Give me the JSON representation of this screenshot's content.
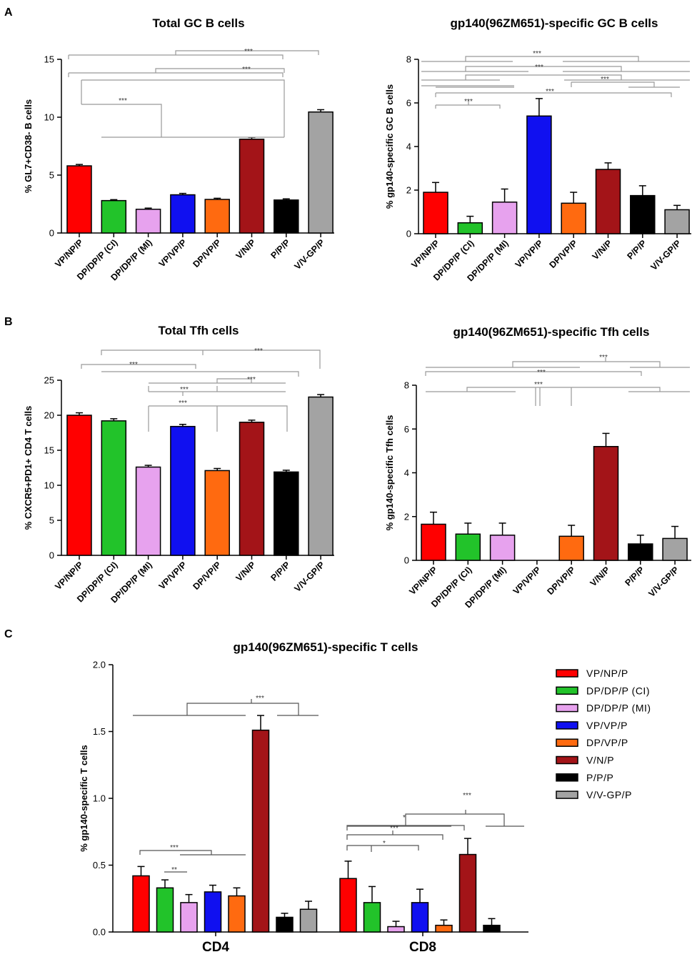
{
  "panels": {
    "A": "A",
    "B": "B",
    "C": "C"
  },
  "colors": {
    "VP/NP/P": "#ff0000",
    "DP/DP/P (CI)": "#22c32a",
    "DP/DP/P (MI)": "#e7a2ee",
    "VP/VP/P": "#1010f0",
    "DP/VP/P": "#ff6a10",
    "V/N/P": "#a31418",
    "P/P/P": "#000000",
    "V/V-GP/P": "#a3a3a3"
  },
  "legend": [
    "VP/NP/P",
    "DP/DP/P (CI)",
    "DP/DP/P (MI)",
    "VP/VP/P",
    "DP/VP/P",
    "V/N/P",
    "P/P/P",
    "V/V-GP/P"
  ],
  "chart_data": [
    {
      "id": "a1",
      "type": "bar",
      "title": "Total GC B cells",
      "ylabel": "% GL7+CD38- B cells",
      "ylim": [
        0,
        15
      ],
      "yticks": [
        0,
        5,
        10,
        15
      ],
      "categories": [
        "VP/NP/P",
        "DP/DP/P (CI)",
        "DP/DP/P (MI)",
        "VP/VP/P",
        "DP/VP/P",
        "V/N/P",
        "P/P/P",
        "V/V-GP/P"
      ],
      "values": [
        5.8,
        2.8,
        2.05,
        3.3,
        2.9,
        8.1,
        2.85,
        10.45
      ],
      "errors": [
        0.12,
        0.08,
        0.1,
        0.12,
        0.1,
        0.15,
        0.1,
        0.2
      ],
      "annotations": [
        "***",
        "***",
        "***"
      ]
    },
    {
      "id": "a2",
      "type": "bar",
      "title": "gp140(96ZM651)-specific GC B cells",
      "ylabel": "% gp140-specific GC B cells",
      "ylim": [
        0,
        8
      ],
      "yticks": [
        0,
        2,
        4,
        6,
        8
      ],
      "categories": [
        "VP/NP/P",
        "DP/DP/P (CI)",
        "DP/DP/P (MI)",
        "VP/VP/P",
        "DP/VP/P",
        "V/N/P",
        "P/P/P",
        "V/V-GP/P"
      ],
      "values": [
        1.9,
        0.5,
        1.45,
        5.4,
        1.4,
        2.95,
        1.75,
        1.1
      ],
      "errors": [
        0.45,
        0.3,
        0.6,
        0.8,
        0.5,
        0.3,
        0.45,
        0.2
      ],
      "annotations": [
        "***",
        "***",
        "***",
        "***",
        "***",
        "***"
      ]
    },
    {
      "id": "b1",
      "type": "bar",
      "title": "Total Tfh cells",
      "ylabel": "% CXCR5+PD1+ CD4 T cells",
      "ylim": [
        0,
        25
      ],
      "yticks": [
        0,
        5,
        10,
        15,
        20,
        25
      ],
      "categories": [
        "VP/NP/P",
        "DP/DP/P (CI)",
        "DP/DP/P (MI)",
        "VP/VP/P",
        "DP/VP/P",
        "V/N/P",
        "P/P/P",
        "V/V-GP/P"
      ],
      "values": [
        20.0,
        19.2,
        12.6,
        18.4,
        12.1,
        19.0,
        11.9,
        22.6
      ],
      "errors": [
        0.35,
        0.3,
        0.25,
        0.3,
        0.3,
        0.3,
        0.25,
        0.35
      ],
      "annotations": [
        "***",
        "***",
        "***",
        "***",
        "***"
      ]
    },
    {
      "id": "b2",
      "type": "bar",
      "title": "gp140(96ZM651)-specific Tfh cells",
      "ylabel": "% gp140-specific Tfh cells",
      "ylim": [
        0,
        8
      ],
      "yticks": [
        0,
        2,
        4,
        6,
        8
      ],
      "categories": [
        "VP/NP/P",
        "DP/DP/P (CI)",
        "DP/DP/P (MI)",
        "VP/VP/P",
        "DP/VP/P",
        "V/N/P",
        "P/P/P",
        "V/V-GP/P"
      ],
      "values": [
        1.65,
        1.2,
        1.15,
        0,
        1.1,
        5.2,
        0.75,
        1.0
      ],
      "errors": [
        0.55,
        0.5,
        0.55,
        0,
        0.5,
        0.6,
        0.4,
        0.55
      ],
      "annotations": [
        "***",
        "***",
        "***"
      ]
    },
    {
      "id": "c",
      "type": "bar",
      "title": "gp140(96ZM651)-specific T cells",
      "ylabel": "% gp140-specific T cells",
      "ylim": [
        0,
        2.0
      ],
      "yticks": [
        0.0,
        0.5,
        1.0,
        1.5,
        2.0
      ],
      "ytick_labels": [
        "0.0",
        "0.5",
        "1.0",
        "1.5",
        "2.0"
      ],
      "groups": [
        "CD4",
        "CD8"
      ],
      "series": [
        {
          "name": "VP/NP/P",
          "values": [
            0.42,
            0.4
          ],
          "errors": [
            0.07,
            0.13
          ]
        },
        {
          "name": "DP/DP/P (CI)",
          "values": [
            0.33,
            0.22
          ],
          "errors": [
            0.06,
            0.12
          ]
        },
        {
          "name": "DP/DP/P (MI)",
          "values": [
            0.22,
            0.04
          ],
          "errors": [
            0.06,
            0.04
          ]
        },
        {
          "name": "VP/VP/P",
          "values": [
            0.3,
            0.22
          ],
          "errors": [
            0.05,
            0.1
          ]
        },
        {
          "name": "DP/VP/P",
          "values": [
            0.27,
            0.05
          ],
          "errors": [
            0.06,
            0.04
          ]
        },
        {
          "name": "V/N/P",
          "values": [
            1.51,
            0.58
          ],
          "errors": [
            0.11,
            0.12
          ]
        },
        {
          "name": "P/P/P",
          "values": [
            0.11,
            0.05
          ],
          "errors": [
            0.03,
            0.05
          ]
        },
        {
          "name": "V/V-GP/P",
          "values": [
            0.17,
            0
          ],
          "errors": [
            0.06,
            0
          ]
        }
      ],
      "annotations_cd4": [
        "***",
        "***",
        "**"
      ],
      "annotations_cd8": [
        "***",
        "*",
        "***",
        "*"
      ]
    }
  ]
}
